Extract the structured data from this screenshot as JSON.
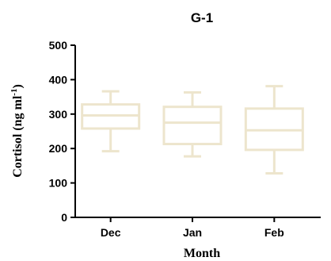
{
  "chart_data": {
    "type": "box",
    "title": "G-1",
    "xlabel": "Month",
    "ylabel": "Cortisol (ng ml",
    "ylabel_superscript": "-1",
    "ylabel_close": ")",
    "categories": [
      "Dec",
      "Jan",
      "Feb"
    ],
    "ylim": [
      0,
      500
    ],
    "yticks": [
      0,
      100,
      200,
      300,
      400,
      500
    ],
    "boxes": [
      {
        "category": "Dec",
        "min": 192,
        "q1": 258,
        "median": 296,
        "q3": 328,
        "max": 366
      },
      {
        "category": "Jan",
        "min": 177,
        "q1": 213,
        "median": 275,
        "q3": 321,
        "max": 363
      },
      {
        "category": "Feb",
        "min": 128,
        "q1": 196,
        "median": 253,
        "q3": 316,
        "max": 381
      }
    ],
    "box_color": "#ede5cd",
    "grid": false
  }
}
